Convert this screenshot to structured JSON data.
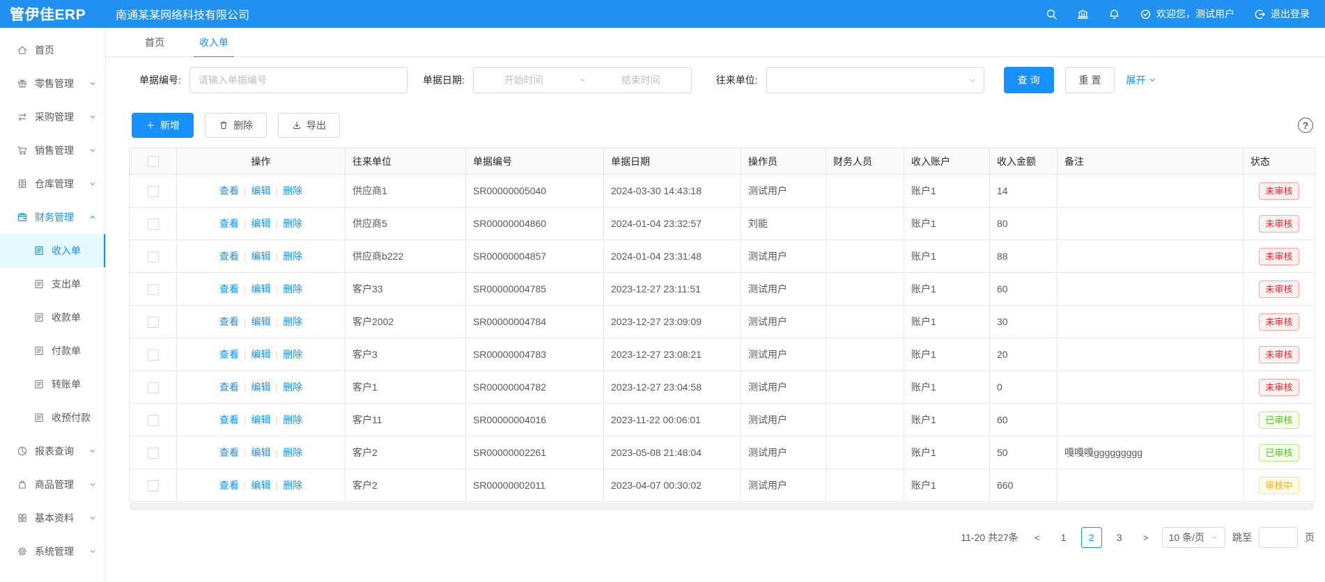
{
  "colors": {
    "header_bg": "#2191f1",
    "primary": "#1890ff",
    "menu_active_bg": "#e6f7ff",
    "status_unaudited": "#f5222d",
    "status_audited": "#52c41a",
    "status_auditing": "#faad14"
  },
  "header": {
    "logo": "管伊佳ERP",
    "company": "南通某某网络科技有限公司",
    "icons": [
      "search-icon",
      "bank-icon",
      "bell-icon"
    ],
    "welcome_icon": "check-circle-icon",
    "welcome": "欢迎您，测试用户",
    "logout_icon": "logout-icon",
    "logout": "退出登录"
  },
  "tabs": [
    {
      "key": "home",
      "label": "首页",
      "active": false
    },
    {
      "key": "income",
      "label": "收入单",
      "active": true
    }
  ],
  "sidebar": {
    "items": [
      {
        "key": "home",
        "label": "首页",
        "icon": "home-icon"
      },
      {
        "key": "retail",
        "label": "零售管理",
        "icon": "retail-icon",
        "chevron": "down"
      },
      {
        "key": "purchase",
        "label": "采购管理",
        "icon": "purchase-icon",
        "chevron": "down"
      },
      {
        "key": "sales",
        "label": "销售管理",
        "icon": "sales-icon",
        "chevron": "down"
      },
      {
        "key": "warehouse",
        "label": "仓库管理",
        "icon": "warehouse-icon",
        "chevron": "down"
      },
      {
        "key": "finance",
        "label": "财务管理",
        "icon": "finance-icon",
        "chevron": "up",
        "active": true,
        "children": [
          {
            "key": "income",
            "label": "收入单",
            "icon": "doc-icon",
            "active": true
          },
          {
            "key": "expense",
            "label": "支出单",
            "icon": "doc-icon"
          },
          {
            "key": "receipt",
            "label": "收款单",
            "icon": "doc-icon"
          },
          {
            "key": "payment",
            "label": "付款单",
            "icon": "doc-icon"
          },
          {
            "key": "transfer",
            "label": "转账单",
            "icon": "doc-icon"
          },
          {
            "key": "advance",
            "label": "收预付款",
            "icon": "doc-icon"
          }
        ]
      },
      {
        "key": "reports",
        "label": "报表查询",
        "icon": "report-icon",
        "chevron": "down"
      },
      {
        "key": "goods",
        "label": "商品管理",
        "icon": "goods-icon",
        "chevron": "down"
      },
      {
        "key": "basic",
        "label": "基本资料",
        "icon": "basic-icon",
        "chevron": "down"
      },
      {
        "key": "system",
        "label": "系统管理",
        "icon": "system-icon",
        "chevron": "down"
      }
    ]
  },
  "filters": {
    "bill_no_label": "单据编号:",
    "bill_no_placeholder": "请输入单据编号",
    "date_label": "单据日期:",
    "date_start_placeholder": "开始时间",
    "date_separator": "~",
    "date_end_placeholder": "结束时间",
    "partner_label": "往来单位:",
    "partner_value": "",
    "search_button": "查 询",
    "reset_button": "重 置",
    "expand_link": "展开"
  },
  "toolbar": {
    "add_label": "新增",
    "delete_label": "删除",
    "export_label": "导出"
  },
  "table": {
    "columns": [
      "操作",
      "往来单位",
      "单据编号",
      "单据日期",
      "操作员",
      "财务人员",
      "收入账户",
      "收入金额",
      "备注",
      "状态"
    ],
    "action_links": [
      "查看",
      "编辑",
      "删除"
    ],
    "rows": [
      {
        "partner": "供应商1",
        "bill_no": "SR00000005040",
        "date": "2024-03-30 14:43:18",
        "operator": "测试用户",
        "finance": "",
        "account": "账户1",
        "amount": "14",
        "remark": "",
        "status": "未审核",
        "status_type": "red"
      },
      {
        "partner": "供应商5",
        "bill_no": "SR00000004860",
        "date": "2024-01-04 23:32:57",
        "operator": "刘能",
        "finance": "",
        "account": "账户1",
        "amount": "80",
        "remark": "",
        "status": "未审核",
        "status_type": "red"
      },
      {
        "partner": "供应商b222",
        "bill_no": "SR00000004857",
        "date": "2024-01-04 23:31:48",
        "operator": "测试用户",
        "finance": "",
        "account": "账户1",
        "amount": "88",
        "remark": "",
        "status": "未审核",
        "status_type": "red"
      },
      {
        "partner": "客户33",
        "bill_no": "SR00000004785",
        "date": "2023-12-27 23:11:51",
        "operator": "测试用户",
        "finance": "",
        "account": "账户1",
        "amount": "60",
        "remark": "",
        "status": "未审核",
        "status_type": "red"
      },
      {
        "partner": "客户2002",
        "bill_no": "SR00000004784",
        "date": "2023-12-27 23:09:09",
        "operator": "测试用户",
        "finance": "",
        "account": "账户1",
        "amount": "30",
        "remark": "",
        "status": "未审核",
        "status_type": "red"
      },
      {
        "partner": "客户3",
        "bill_no": "SR00000004783",
        "date": "2023-12-27 23:08:21",
        "operator": "测试用户",
        "finance": "",
        "account": "账户1",
        "amount": "20",
        "remark": "",
        "status": "未审核",
        "status_type": "red"
      },
      {
        "partner": "客户1",
        "bill_no": "SR00000004782",
        "date": "2023-12-27 23:04:58",
        "operator": "测试用户",
        "finance": "",
        "account": "账户1",
        "amount": "0",
        "remark": "",
        "status": "未审核",
        "status_type": "red"
      },
      {
        "partner": "客户11",
        "bill_no": "SR00000004016",
        "date": "2023-11-22 00:06:01",
        "operator": "测试用户",
        "finance": "",
        "account": "账户1",
        "amount": "60",
        "remark": "",
        "status": "已审核",
        "status_type": "green"
      },
      {
        "partner": "客户2",
        "bill_no": "SR00000002261",
        "date": "2023-05-08 21:48:04",
        "operator": "测试用户",
        "finance": "",
        "account": "账户1",
        "amount": "50",
        "remark": "嘎嘎嘎ggggggggg",
        "status": "已审核",
        "status_type": "green"
      },
      {
        "partner": "客户2",
        "bill_no": "SR00000002011",
        "date": "2023-04-07 00:30:02",
        "operator": "测试用户",
        "finance": "",
        "account": "账户1",
        "amount": "660",
        "remark": "",
        "status": "审核中",
        "status_type": "orange"
      }
    ]
  },
  "pagination": {
    "summary": "11-20 共27条",
    "prev": "<",
    "pages": [
      "1",
      "2",
      "3"
    ],
    "active_page": "2",
    "next": ">",
    "page_size": "10 条/页",
    "jump_prefix": "跳至",
    "jump_suffix": "页"
  },
  "help_icon": "question-circle-icon"
}
